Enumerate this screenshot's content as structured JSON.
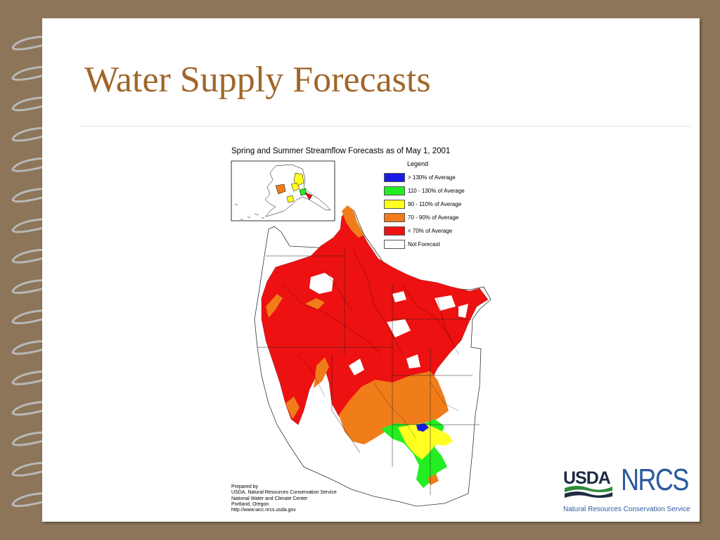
{
  "slide": {
    "title": "Water Supply Forecasts"
  },
  "map": {
    "title": "Spring and Summer Streamflow Forecasts as of May 1, 2001",
    "legend": {
      "title": "Legend",
      "items": [
        {
          "label": "> 130% of Average",
          "color": "#1a1ae6"
        },
        {
          "label": "110 - 130% of Average",
          "color": "#22ee22"
        },
        {
          "label": "90 - 110% of Average",
          "color": "#ffff22"
        },
        {
          "label": "70 - 90% of Average",
          "color": "#f07d1a"
        },
        {
          "label": "< 70% of Average",
          "color": "#ee1111"
        },
        {
          "label": "Not Forecast",
          "color": "#ffffff"
        }
      ]
    },
    "credits": [
      "Prepared by",
      "USDA, Natural Resources Conservation Service",
      "National Water and Climate Center",
      "Portland, Oregon",
      "http://www.wcc.nrcs.usda.gov"
    ]
  },
  "logo": {
    "agency": "USDA",
    "service": "NRCS",
    "service_full": "Natural Resources Conservation Service",
    "colors": {
      "usda": "#1f2a44",
      "nrcs": "#2c5aa0",
      "green": "#2e8b3a"
    }
  },
  "theme": {
    "background": "#8c7558",
    "title": "#a0662a"
  }
}
